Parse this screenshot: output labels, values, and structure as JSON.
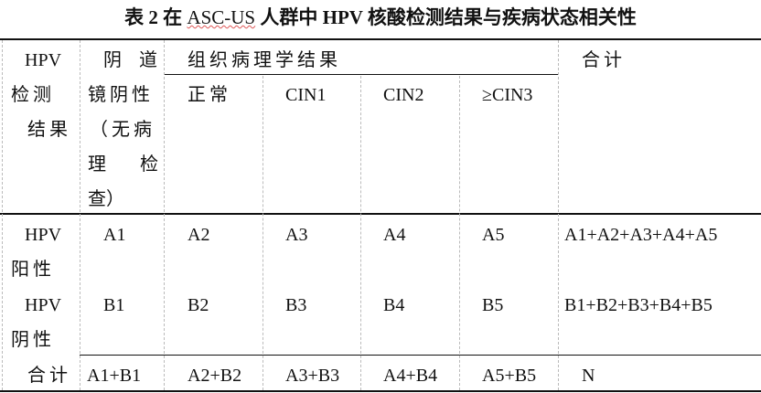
{
  "title": {
    "prefix": "表 2 在 ",
    "underlined": "ASC-US",
    "suffix": " 人群中 HPV 核酸检测结果与疾病状态相关性"
  },
  "header": {
    "hpv_result": [
      "HPV",
      "检测",
      "结果"
    ],
    "colposcopy": [
      "阴 道",
      "镜阴性",
      "（无病",
      "理  检",
      "查）"
    ],
    "histology": "组织病理学结果",
    "sub": [
      "正常",
      "CIN1",
      "CIN2",
      "≥CIN3"
    ],
    "total": "合计"
  },
  "rows": [
    {
      "label": [
        "HPV",
        "阳性"
      ],
      "cells": [
        "A1",
        "A2",
        "A3",
        "A4",
        "A5",
        "A1+A2+A3+A4+A5"
      ]
    },
    {
      "label": [
        "HPV",
        "阴性"
      ],
      "cells": [
        "B1",
        "B2",
        "B3",
        "B4",
        "B5",
        "B1+B2+B3+B4+B5"
      ]
    },
    {
      "label": [
        "合计"
      ],
      "cells": [
        "A1+B1",
        "A2+B2",
        "A3+B3",
        "A4+B4",
        "A5+B5",
        "N"
      ]
    }
  ]
}
